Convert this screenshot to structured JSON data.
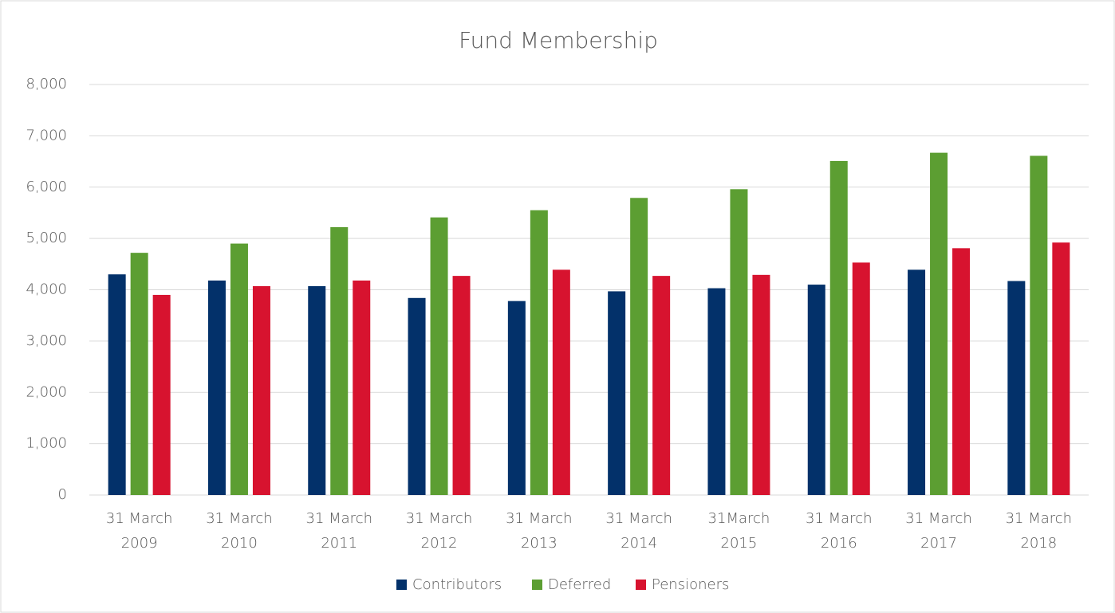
{
  "chart_data": {
    "type": "bar",
    "title": "Fund Membership",
    "categories": [
      "31 March 2009",
      "31 March 2010",
      "31 March 2011",
      "31 March 2012",
      "31 March 2013",
      "31 March 2014",
      "31March 2015",
      "31 March 2016",
      "31 March 2017",
      "31 March 2018"
    ],
    "series": [
      {
        "name": "Contributors",
        "color": "#03316a",
        "values": [
          4300,
          4180,
          4070,
          3840,
          3780,
          3970,
          4030,
          4100,
          4390,
          4170
        ]
      },
      {
        "name": "Deferred",
        "color": "#5c9e32",
        "values": [
          4720,
          4900,
          5220,
          5410,
          5550,
          5790,
          5960,
          6510,
          6670,
          6610
        ]
      },
      {
        "name": "Pensioners",
        "color": "#d7132f",
        "values": [
          3900,
          4070,
          4180,
          4270,
          4390,
          4270,
          4290,
          4530,
          4810,
          4920
        ]
      }
    ],
    "ylim": [
      0,
      8000
    ],
    "yticks": [
      0,
      {
        "value": 1000,
        "label": "1,000"
      },
      {
        "value": 2000,
        "label": "2,000"
      },
      {
        "value": 3000,
        "label": "3,000"
      },
      {
        "value": 4000,
        "label": "4,000"
      },
      {
        "value": 5000,
        "label": "5,000"
      },
      {
        "value": 6000,
        "label": "6,000"
      },
      {
        "value": 7000,
        "label": "7,000"
      },
      {
        "value": 8000,
        "label": "8,000"
      }
    ],
    "grid": true,
    "legend": "bottom"
  }
}
